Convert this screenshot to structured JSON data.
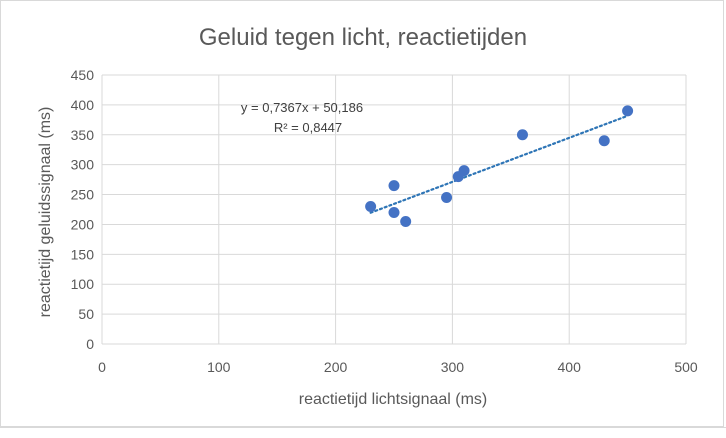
{
  "chart_data": {
    "type": "scatter",
    "title": "Geluid tegen licht, reactietijden",
    "xlabel": "reactietijd lichtsignaal (ms)",
    "ylabel": "reactietijd geluidssignaal (ms)",
    "xlim": [
      0,
      500
    ],
    "ylim": [
      0,
      450
    ],
    "xticks": [
      "0",
      "100",
      "200",
      "300",
      "400",
      "500"
    ],
    "yticks": [
      "0",
      "50",
      "100",
      "150",
      "200",
      "250",
      "300",
      "350",
      "400",
      "450"
    ],
    "grid": true,
    "legend": "none",
    "points": [
      {
        "x": 230,
        "y": 230
      },
      {
        "x": 250,
        "y": 265
      },
      {
        "x": 250,
        "y": 220
      },
      {
        "x": 260,
        "y": 205
      },
      {
        "x": 295,
        "y": 245
      },
      {
        "x": 305,
        "y": 280
      },
      {
        "x": 310,
        "y": 290
      },
      {
        "x": 360,
        "y": 350
      },
      {
        "x": 430,
        "y": 340
      },
      {
        "x": 450,
        "y": 390
      }
    ],
    "trendline": {
      "kind": "linear",
      "slope": 0.7367,
      "intercept": 50.186,
      "x_range": [
        230,
        450
      ],
      "equation": "y = 0,7367x + 50,186",
      "r2": "R² = 0,8447"
    },
    "colors": {
      "marker": "#4472c4",
      "trendline": "#2e75b6",
      "grid": "#d9d9d9",
      "text": "#595959"
    }
  }
}
